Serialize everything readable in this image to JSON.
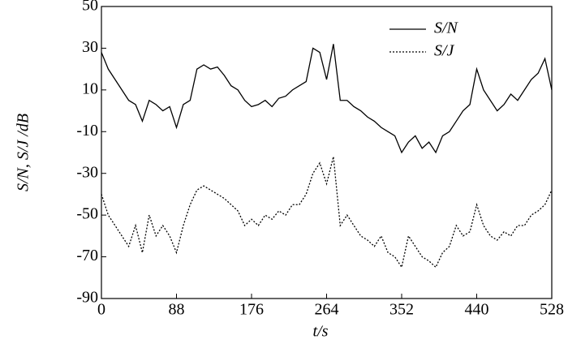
{
  "chart_data": {
    "type": "line",
    "xlabel": "t/s",
    "ylabel": "S/N, S/J /dB",
    "x": [
      0,
      8,
      16,
      24,
      32,
      40,
      48,
      56,
      64,
      72,
      80,
      88,
      96,
      104,
      112,
      120,
      128,
      136,
      144,
      152,
      160,
      168,
      176,
      184,
      192,
      200,
      208,
      216,
      224,
      232,
      240,
      248,
      256,
      264,
      272,
      280,
      288,
      296,
      304,
      312,
      320,
      328,
      336,
      344,
      352,
      360,
      368,
      376,
      384,
      392,
      400,
      408,
      416,
      424,
      432,
      440,
      448,
      456,
      464,
      472,
      480,
      488,
      496,
      504,
      512,
      520,
      528
    ],
    "series": [
      {
        "name": "S/N",
        "color": "#000000",
        "dash": "solid",
        "values": [
          28,
          20,
          15,
          10,
          5,
          3,
          -5,
          5,
          3,
          0,
          2,
          -8,
          3,
          5,
          20,
          22,
          20,
          21,
          17,
          12,
          10,
          5,
          2,
          3,
          5,
          2,
          6,
          7,
          10,
          12,
          14,
          30,
          28,
          15,
          32,
          5,
          5,
          2,
          0,
          -3,
          -5,
          -8,
          -10,
          -12,
          -20,
          -15,
          -12,
          -18,
          -15,
          -20,
          -12,
          -10,
          -5,
          0,
          3,
          20,
          10,
          5,
          0,
          3,
          8,
          5,
          10,
          15,
          18,
          25,
          10
        ]
      },
      {
        "name": "S/J",
        "color": "#000000",
        "dash": "dotted",
        "values": [
          -40,
          -50,
          -55,
          -60,
          -65,
          -55,
          -68,
          -50,
          -60,
          -55,
          -60,
          -68,
          -55,
          -45,
          -38,
          -36,
          -38,
          -40,
          -42,
          -45,
          -48,
          -55,
          -52,
          -55,
          -50,
          -52,
          -48,
          -50,
          -45,
          -45,
          -40,
          -30,
          -25,
          -35,
          -22,
          -55,
          -50,
          -55,
          -60,
          -62,
          -65,
          -60,
          -68,
          -70,
          -75,
          -60,
          -65,
          -70,
          -72,
          -75,
          -68,
          -65,
          -55,
          -60,
          -58,
          -45,
          -55,
          -60,
          -62,
          -58,
          -60,
          -55,
          -55,
          -50,
          -48,
          -45,
          -38
        ]
      }
    ],
    "xlim": [
      0,
      528
    ],
    "xticks": [
      0,
      88,
      176,
      264,
      352,
      440,
      528
    ],
    "ylim": [
      -90,
      50
    ],
    "yticks": [
      -90,
      -70,
      -50,
      -30,
      -10,
      10,
      30,
      50
    ],
    "legend": "top-right",
    "grid": false
  }
}
